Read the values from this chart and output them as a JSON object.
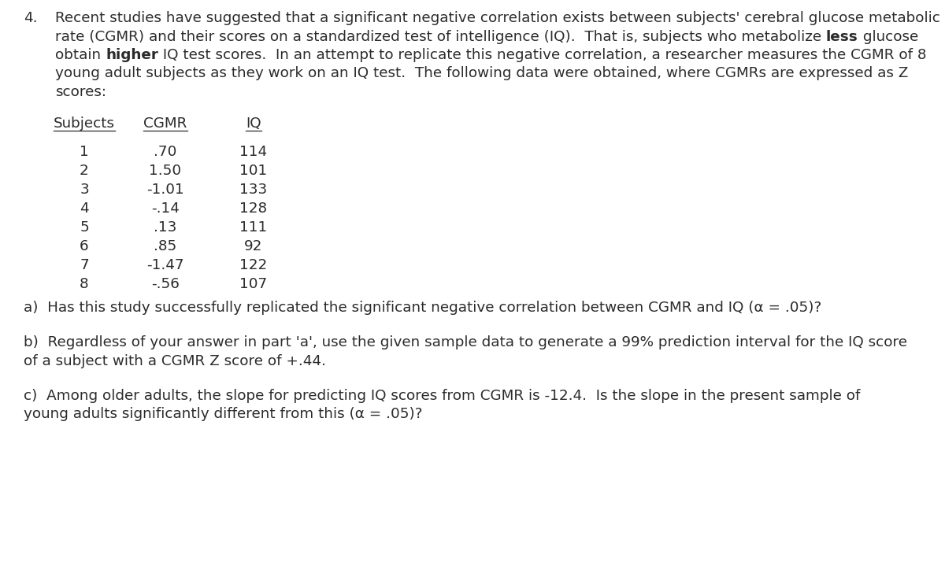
{
  "number": "4.",
  "line1": "Recent studies have suggested that a significant negative correlation exists between subjects' cerebral glucose metabolic",
  "line2_pre": "rate (CGMR) and their scores on a standardized test of intelligence (IQ).  That is, subjects who metabolize ",
  "line2_bold": "less",
  "line2_post": " glucose",
  "line3_pre": "obtain ",
  "line3_bold": "higher",
  "line3_post": " IQ test scores.  In an attempt to replicate this negative correlation, a researcher measures the CGMR of 8",
  "line4": "young adult subjects as they work on an IQ test.  The following data were obtained, where CGMRs are expressed as Z",
  "line5": "scores:",
  "table_headers": [
    "Subjects",
    "CGMR",
    "IQ"
  ],
  "table_data": [
    [
      "1",
      ".70",
      "114"
    ],
    [
      "2",
      "1.50",
      "101"
    ],
    [
      "3",
      "-1.01",
      "133"
    ],
    [
      "4",
      "-.14",
      "128"
    ],
    [
      "5",
      ".13",
      "111"
    ],
    [
      "6",
      ".85",
      "92"
    ],
    [
      "7",
      "-1.47",
      "122"
    ],
    [
      "8",
      "-.56",
      "107"
    ]
  ],
  "question_a": "a)  Has this study successfully replicated the significant negative correlation between CGMR and IQ (α = .05)?",
  "question_b_line1": "b)  Regardless of your answer in part 'a', use the given sample data to generate a 99% prediction interval for the IQ score",
  "question_b_line2": "of a subject with a CGMR Z score of +.44.",
  "question_c_line1": "c)  Among older adults, the slope for predicting IQ scores from CGMR is -12.4.  Is the slope in the present sample of",
  "question_c_line2": "young adults significantly different from this (α = .05)?",
  "bg_color": "#ffffff",
  "text_color": "#2b2b2b",
  "font_size": 13.2,
  "font_family": "DejaVu Sans"
}
